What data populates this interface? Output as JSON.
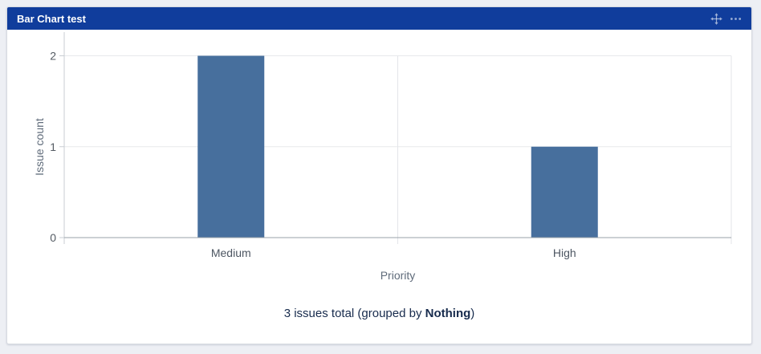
{
  "gadget": {
    "title": "Bar Chart test",
    "header_bg": "#103d9c",
    "icon_color": "rgba(255,255,255,0.58)",
    "move_icon": "move-arrows-icon",
    "more_icon": "ellipsis-icon"
  },
  "chart_data": {
    "type": "bar",
    "title": "",
    "categories": [
      "Medium",
      "High"
    ],
    "values": [
      2,
      1
    ],
    "xlabel": "Priority",
    "ylabel": "Issue count",
    "ylim": [
      0,
      2
    ],
    "yticks": [
      0,
      1,
      2
    ],
    "bar_color": "#476f9d",
    "grid": true,
    "legend": false
  },
  "summary": {
    "prefix": "3 issues total (grouped by ",
    "group_by": "Nothing",
    "suffix": ")",
    "text_color": "#172b4d"
  }
}
